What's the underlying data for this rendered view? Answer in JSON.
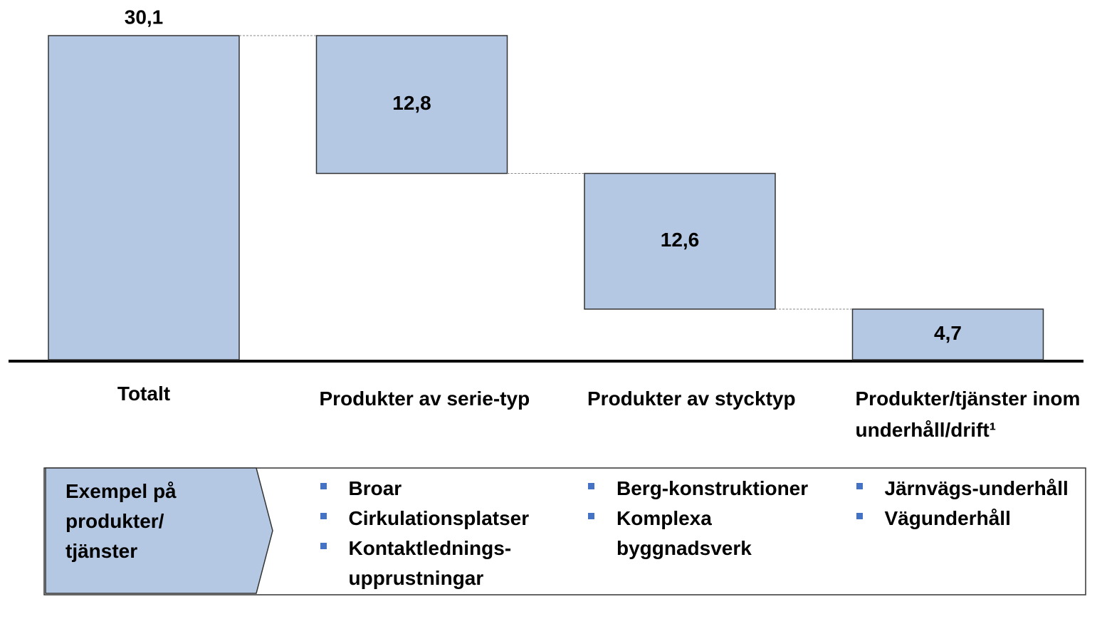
{
  "chart_data": {
    "type": "waterfall",
    "categories": [
      "Totalt",
      "Produkter av serie-typ",
      "Produkter av stycktyp",
      "Produkter/tjänster inom underhåll/drift¹"
    ],
    "values": [
      30.1,
      12.8,
      12.6,
      4.7
    ],
    "value_labels": [
      "30,1",
      "12,8",
      "12,6",
      "4,7"
    ],
    "color": "#b4c8e4"
  },
  "examples": {
    "label": "Exempel på produkter/ tjänster",
    "items": [
      [
        "Broar",
        "Cirkulationsplatser",
        "Kontaktlednings-upprustningar"
      ],
      [
        "Berg-konstruktioner",
        "Komplexa byggnadsverk"
      ],
      [
        "Järnvägs-underhåll",
        "Vägunderhåll"
      ]
    ]
  }
}
